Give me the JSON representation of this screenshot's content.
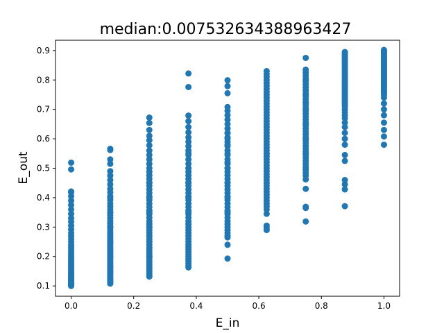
{
  "chart_data": {
    "type": "scatter",
    "title": "median:0.007532634388963427",
    "xlabel": "E_in",
    "ylabel": "E_out",
    "xlim": [
      -0.05,
      1.05
    ],
    "ylim": [
      0.065,
      0.935
    ],
    "xticks": [
      "0.0",
      "0.2",
      "0.4",
      "0.6",
      "0.8",
      "1.0"
    ],
    "yticks": [
      "0.1",
      "0.2",
      "0.3",
      "0.4",
      "0.5",
      "0.6",
      "0.7",
      "0.8",
      "0.9"
    ],
    "grid": false,
    "color": "#1f77b4",
    "series": [
      {
        "x": [
          0,
          0,
          0,
          0,
          0,
          0,
          0,
          0,
          0,
          0,
          0,
          0,
          0,
          0,
          0,
          0,
          0,
          0,
          0,
          0,
          0,
          0,
          0,
          0,
          0,
          0,
          0,
          0,
          0,
          0,
          0,
          0,
          0,
          0,
          0,
          0,
          0,
          0,
          0,
          0,
          0,
          0,
          0,
          0,
          0,
          0,
          0,
          0,
          0,
          0,
          0,
          0,
          0,
          0,
          0,
          0.125,
          0.125,
          0.125,
          0.125,
          0.125,
          0.125,
          0.125,
          0.125,
          0.125,
          0.125,
          0.125,
          0.125,
          0.125,
          0.125,
          0.125,
          0.125,
          0.125,
          0.125,
          0.125,
          0.125,
          0.125,
          0.125,
          0.125,
          0.125,
          0.125,
          0.125,
          0.125,
          0.125,
          0.125,
          0.125,
          0.125,
          0.125,
          0.125,
          0.125,
          0.125,
          0.125,
          0.125,
          0.125,
          0.125,
          0.125,
          0.125,
          0.125,
          0.125,
          0.125,
          0.125,
          0.125,
          0.125,
          0.125,
          0.125,
          0.125,
          0.125,
          0.125,
          0.125,
          0.125,
          0.125,
          0.125,
          0.125,
          0.125,
          0.125,
          0.125,
          0.125,
          0.25,
          0.25,
          0.25,
          0.25,
          0.25,
          0.25,
          0.25,
          0.25,
          0.25,
          0.25,
          0.25,
          0.25,
          0.25,
          0.25,
          0.25,
          0.25,
          0.25,
          0.25,
          0.25,
          0.25,
          0.25,
          0.25,
          0.25,
          0.25,
          0.25,
          0.25,
          0.25,
          0.25,
          0.25,
          0.25,
          0.25,
          0.25,
          0.25,
          0.25,
          0.25,
          0.25,
          0.25,
          0.25,
          0.25,
          0.25,
          0.25,
          0.25,
          0.25,
          0.25,
          0.25,
          0.25,
          0.25,
          0.25,
          0.25,
          0.25,
          0.25,
          0.25,
          0.25,
          0.25,
          0.375,
          0.375,
          0.375,
          0.375,
          0.375,
          0.375,
          0.375,
          0.375,
          0.375,
          0.375,
          0.375,
          0.375,
          0.375,
          0.375,
          0.375,
          0.375,
          0.375,
          0.375,
          0.375,
          0.375,
          0.375,
          0.375,
          0.375,
          0.375,
          0.375,
          0.375,
          0.375,
          0.375,
          0.375,
          0.375,
          0.375,
          0.375,
          0.375,
          0.375,
          0.375,
          0.375,
          0.375,
          0.375,
          0.375,
          0.375,
          0.375,
          0.375,
          0.375,
          0.375,
          0.375,
          0.375,
          0.375,
          0.375,
          0.375,
          0.375,
          0.375,
          0.375,
          0.5,
          0.5,
          0.5,
          0.5,
          0.5,
          0.5,
          0.5,
          0.5,
          0.5,
          0.5,
          0.5,
          0.5,
          0.5,
          0.5,
          0.5,
          0.5,
          0.5,
          0.5,
          0.5,
          0.5,
          0.5,
          0.5,
          0.5,
          0.5,
          0.5,
          0.5,
          0.5,
          0.5,
          0.5,
          0.5,
          0.5,
          0.5,
          0.5,
          0.5,
          0.5,
          0.5,
          0.5,
          0.5,
          0.5,
          0.5,
          0.5,
          0.5,
          0.5,
          0.5,
          0.5,
          0.5,
          0.5,
          0.5,
          0.5,
          0.5,
          0.625,
          0.625,
          0.625,
          0.625,
          0.625,
          0.625,
          0.625,
          0.625,
          0.625,
          0.625,
          0.625,
          0.625,
          0.625,
          0.625,
          0.625,
          0.625,
          0.625,
          0.625,
          0.625,
          0.625,
          0.625,
          0.625,
          0.625,
          0.625,
          0.625,
          0.625,
          0.625,
          0.625,
          0.625,
          0.625,
          0.625,
          0.625,
          0.625,
          0.625,
          0.625,
          0.625,
          0.625,
          0.625,
          0.625,
          0.625,
          0.625,
          0.625,
          0.625,
          0.625,
          0.625,
          0.625,
          0.625,
          0.625,
          0.625,
          0.625,
          0.625,
          0.625,
          0.625,
          0.75,
          0.75,
          0.75,
          0.75,
          0.75,
          0.75,
          0.75,
          0.75,
          0.75,
          0.75,
          0.75,
          0.75,
          0.75,
          0.75,
          0.75,
          0.75,
          0.75,
          0.75,
          0.75,
          0.75,
          0.75,
          0.75,
          0.75,
          0.75,
          0.75,
          0.75,
          0.75,
          0.75,
          0.75,
          0.75,
          0.75,
          0.75,
          0.75,
          0.75,
          0.75,
          0.75,
          0.75,
          0.75,
          0.75,
          0.75,
          0.75,
          0.75,
          0.75,
          0.75,
          0.75,
          0.75,
          0.75,
          0.75,
          0.75,
          0.75,
          0.75,
          0.875,
          0.875,
          0.875,
          0.875,
          0.875,
          0.875,
          0.875,
          0.875,
          0.875,
          0.875,
          0.875,
          0.875,
          0.875,
          0.875,
          0.875,
          0.875,
          0.875,
          0.875,
          0.875,
          0.875,
          0.875,
          0.875,
          0.875,
          0.875,
          0.875,
          0.875,
          0.875,
          0.875,
          0.875,
          0.875,
          0.875,
          0.875,
          0.875,
          0.875,
          0.875,
          0.875,
          0.875,
          0.875,
          0.875,
          0.875,
          0.875,
          0.875,
          0.875,
          0.875,
          0.875,
          0.875,
          0.875,
          0.875,
          0.875,
          0.875,
          0.875,
          0.875,
          0.875,
          1,
          1,
          1,
          1,
          1,
          1,
          1,
          1,
          1,
          1,
          1,
          1,
          1,
          1,
          1,
          1,
          1,
          1,
          1,
          1,
          1,
          1,
          1,
          1,
          1,
          1,
          1,
          1,
          1,
          1,
          1,
          1,
          1,
          1,
          1,
          1,
          1,
          1,
          1,
          1,
          1,
          1,
          1,
          1,
          1
        ],
        "y": [
          0.519,
          0.496,
          0.421,
          0.418,
          0.405,
          0.39,
          0.375,
          0.36,
          0.345,
          0.33,
          0.318,
          0.305,
          0.292,
          0.28,
          0.27,
          0.26,
          0.25,
          0.24,
          0.232,
          0.224,
          0.216,
          0.209,
          0.202,
          0.196,
          0.19,
          0.184,
          0.178,
          0.172,
          0.167,
          0.162,
          0.157,
          0.152,
          0.148,
          0.144,
          0.14,
          0.136,
          0.133,
          0.13,
          0.127,
          0.124,
          0.121,
          0.118,
          0.116,
          0.114,
          0.112,
          0.11,
          0.108,
          0.106,
          0.105,
          0.104,
          0.103,
          0.102,
          0.101,
          0.1,
          0.12,
          0.566,
          0.562,
          0.53,
          0.515,
          0.49,
          0.475,
          0.46,
          0.445,
          0.43,
          0.418,
          0.405,
          0.392,
          0.38,
          0.37,
          0.36,
          0.35,
          0.34,
          0.33,
          0.32,
          0.312,
          0.304,
          0.296,
          0.288,
          0.28,
          0.272,
          0.265,
          0.258,
          0.251,
          0.244,
          0.237,
          0.23,
          0.224,
          0.218,
          0.212,
          0.206,
          0.2,
          0.194,
          0.188,
          0.182,
          0.176,
          0.17,
          0.165,
          0.16,
          0.155,
          0.15,
          0.145,
          0.14,
          0.135,
          0.13,
          0.126,
          0.122,
          0.118,
          0.114,
          0.111,
          0.108,
          0.25,
          0.3,
          0.35,
          0.4,
          0.2,
          0.15,
          0.672,
          0.654,
          0.63,
          0.61,
          0.595,
          0.578,
          0.56,
          0.545,
          0.53,
          0.515,
          0.5,
          0.488,
          0.476,
          0.464,
          0.452,
          0.44,
          0.428,
          0.416,
          0.404,
          0.392,
          0.38,
          0.368,
          0.356,
          0.344,
          0.332,
          0.32,
          0.31,
          0.3,
          0.29,
          0.28,
          0.27,
          0.26,
          0.25,
          0.24,
          0.23,
          0.222,
          0.214,
          0.206,
          0.198,
          0.19,
          0.182,
          0.174,
          0.166,
          0.158,
          0.15,
          0.143,
          0.137,
          0.132,
          0.35,
          0.4,
          0.45,
          0.3,
          0.25,
          0.2,
          0.822,
          0.776,
          0.679,
          0.66,
          0.64,
          0.622,
          0.605,
          0.59,
          0.575,
          0.56,
          0.545,
          0.53,
          0.515,
          0.5,
          0.488,
          0.476,
          0.464,
          0.452,
          0.44,
          0.428,
          0.416,
          0.404,
          0.392,
          0.38,
          0.368,
          0.356,
          0.344,
          0.332,
          0.32,
          0.31,
          0.3,
          0.29,
          0.28,
          0.27,
          0.26,
          0.25,
          0.24,
          0.232,
          0.224,
          0.216,
          0.208,
          0.2,
          0.192,
          0.184,
          0.176,
          0.168,
          0.163,
          0.45,
          0.5,
          0.55,
          0.4,
          0.35,
          0.799,
          0.779,
          0.755,
          0.708,
          0.695,
          0.68,
          0.665,
          0.65,
          0.635,
          0.62,
          0.605,
          0.59,
          0.575,
          0.56,
          0.545,
          0.53,
          0.515,
          0.5,
          0.488,
          0.476,
          0.464,
          0.452,
          0.44,
          0.428,
          0.416,
          0.404,
          0.392,
          0.38,
          0.368,
          0.356,
          0.344,
          0.332,
          0.32,
          0.31,
          0.3,
          0.29,
          0.28,
          0.271,
          0.265,
          0.24,
          0.193,
          0.45,
          0.55,
          0.6,
          0.5,
          0.4,
          0.35,
          0.62,
          0.58,
          0.52,
          0.83,
          0.82,
          0.81,
          0.8,
          0.79,
          0.78,
          0.77,
          0.76,
          0.75,
          0.74,
          0.73,
          0.72,
          0.71,
          0.7,
          0.69,
          0.68,
          0.67,
          0.66,
          0.65,
          0.64,
          0.63,
          0.62,
          0.61,
          0.6,
          0.59,
          0.58,
          0.57,
          0.56,
          0.55,
          0.54,
          0.53,
          0.52,
          0.51,
          0.5,
          0.49,
          0.48,
          0.47,
          0.46,
          0.45,
          0.44,
          0.43,
          0.42,
          0.41,
          0.4,
          0.39,
          0.38,
          0.37,
          0.36,
          0.345,
          0.305,
          0.298,
          0.29,
          0.55,
          0.875,
          0.835,
          0.825,
          0.815,
          0.805,
          0.795,
          0.785,
          0.775,
          0.765,
          0.755,
          0.745,
          0.735,
          0.725,
          0.715,
          0.705,
          0.695,
          0.685,
          0.675,
          0.665,
          0.655,
          0.645,
          0.635,
          0.625,
          0.615,
          0.605,
          0.595,
          0.585,
          0.575,
          0.565,
          0.555,
          0.545,
          0.535,
          0.525,
          0.515,
          0.505,
          0.495,
          0.485,
          0.475,
          0.462,
          0.43,
          0.369,
          0.365,
          0.319,
          0.7,
          0.65,
          0.6,
          0.75,
          0.8,
          0.55,
          0.5,
          0.72,
          0.895,
          0.89,
          0.885,
          0.88,
          0.875,
          0.87,
          0.865,
          0.86,
          0.855,
          0.85,
          0.845,
          0.84,
          0.835,
          0.83,
          0.825,
          0.82,
          0.815,
          0.81,
          0.805,
          0.8,
          0.795,
          0.79,
          0.785,
          0.78,
          0.775,
          0.77,
          0.765,
          0.76,
          0.755,
          0.75,
          0.745,
          0.74,
          0.735,
          0.73,
          0.725,
          0.72,
          0.715,
          0.71,
          0.7,
          0.69,
          0.68,
          0.67,
          0.655,
          0.64,
          0.62,
          0.6,
          0.58,
          0.545,
          0.525,
          0.46,
          0.445,
          0.428,
          0.371,
          0.902,
          0.898,
          0.894,
          0.89,
          0.886,
          0.882,
          0.878,
          0.874,
          0.87,
          0.866,
          0.862,
          0.858,
          0.854,
          0.85,
          0.846,
          0.842,
          0.838,
          0.834,
          0.83,
          0.826,
          0.822,
          0.818,
          0.814,
          0.81,
          0.806,
          0.802,
          0.798,
          0.794,
          0.79,
          0.785,
          0.78,
          0.775,
          0.77,
          0.765,
          0.76,
          0.755,
          0.75,
          0.74,
          0.72,
          0.7,
          0.68,
          0.655,
          0.63,
          0.608,
          0.58
        ]
      }
    ]
  }
}
